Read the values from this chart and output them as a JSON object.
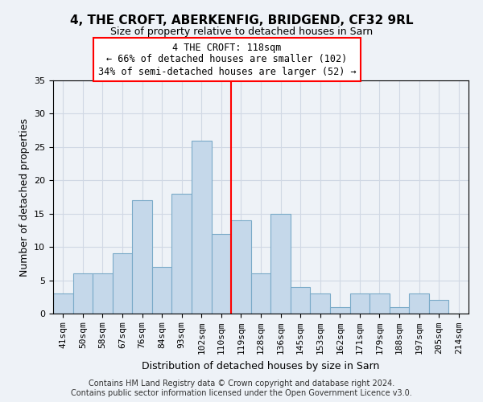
{
  "title": "4, THE CROFT, ABERKENFIG, BRIDGEND, CF32 9RL",
  "subtitle": "Size of property relative to detached houses in Sarn",
  "xlabel": "Distribution of detached houses by size in Sarn",
  "ylabel": "Number of detached properties",
  "footer_line1": "Contains HM Land Registry data © Crown copyright and database right 2024.",
  "footer_line2": "Contains public sector information licensed under the Open Government Licence v3.0.",
  "bin_labels": [
    "41sqm",
    "50sqm",
    "58sqm",
    "67sqm",
    "76sqm",
    "84sqm",
    "93sqm",
    "102sqm",
    "110sqm",
    "119sqm",
    "128sqm",
    "136sqm",
    "145sqm",
    "153sqm",
    "162sqm",
    "171sqm",
    "179sqm",
    "188sqm",
    "197sqm",
    "205sqm",
    "214sqm"
  ],
  "bar_heights": [
    3,
    6,
    6,
    9,
    17,
    7,
    18,
    26,
    12,
    14,
    6,
    15,
    4,
    3,
    1,
    3,
    3,
    1,
    3,
    2,
    0
  ],
  "bar_color": "#c5d8ea",
  "bar_edge_color": "#7aaac8",
  "property_line_x": 8.5,
  "ann_line1": "4 THE CROFT: 118sqm",
  "ann_line2": "← 66% of detached houses are smaller (102)",
  "ann_line3": "34% of semi-detached houses are larger (52) →",
  "ylim": [
    0,
    35
  ],
  "yticks": [
    0,
    5,
    10,
    15,
    20,
    25,
    30,
    35
  ],
  "grid_color": "#d0d8e4",
  "background_color": "#eef2f7",
  "title_fontsize": 11,
  "subtitle_fontsize": 9,
  "axis_label_fontsize": 9,
  "tick_fontsize": 8,
  "footer_fontsize": 7
}
